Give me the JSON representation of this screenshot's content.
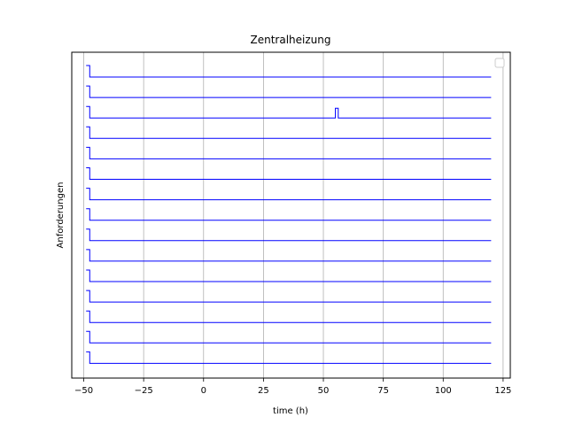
{
  "chart_data": {
    "type": "line",
    "title": "Zentralheizung",
    "xlabel": "time (h)",
    "ylabel": "Anforderungen",
    "xlim": [
      -55,
      128
    ],
    "xticks": [
      -50,
      -25,
      0,
      25,
      50,
      75,
      100,
      125
    ],
    "xtick_labels": [
      "−50",
      "−25",
      "0",
      "25",
      "50",
      "75",
      "100",
      "125"
    ],
    "grid": "x",
    "legend": "top-right",
    "line_color": "#0000ff",
    "grid_color": "#b0b0b0",
    "x_start": -49,
    "x_step": -47.5,
    "x_end": 120,
    "series_count": 15,
    "spike_series_index": 2,
    "spike_x": [
      55,
      56.2
    ]
  }
}
